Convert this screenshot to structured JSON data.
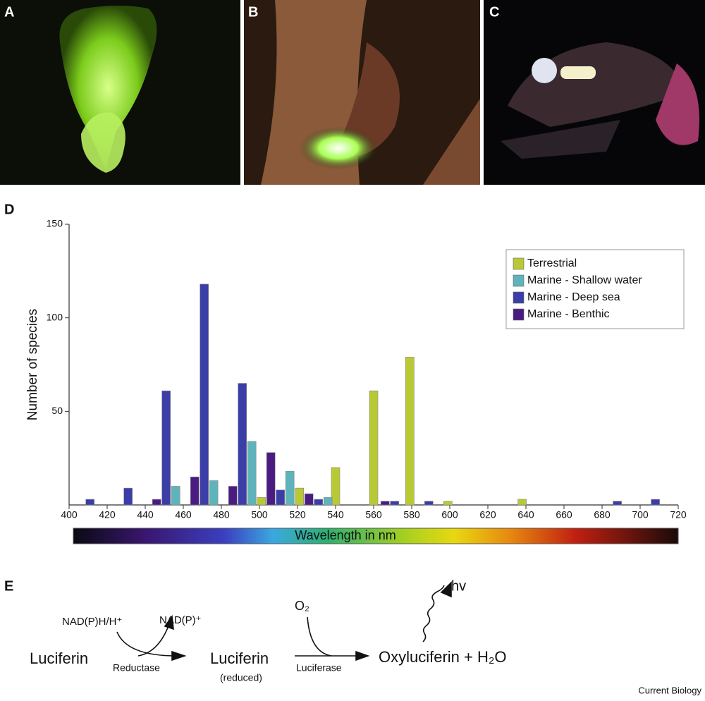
{
  "panel_labels": [
    "A",
    "B",
    "C",
    "D",
    "E"
  ],
  "chart_data": {
    "type": "bar",
    "x_label": "Wavelength in nm",
    "y_label": "Number of species",
    "xlim": [
      400,
      720
    ],
    "ylim": [
      0,
      150
    ],
    "xticks": [
      400,
      420,
      440,
      460,
      480,
      500,
      520,
      540,
      560,
      580,
      600,
      620,
      640,
      660,
      680,
      700,
      720
    ],
    "yticks": [
      50,
      100,
      150
    ],
    "legend": "top-right",
    "series": [
      {
        "name": "Terrestrial",
        "color": "#b9c936",
        "x": [
          501,
          521,
          540,
          560,
          579,
          599,
          638
        ],
        "values": [
          4,
          9,
          20,
          61,
          79,
          2,
          3
        ]
      },
      {
        "name": "Marine - Shallow water",
        "color": "#5fb3bb",
        "x": [
          456,
          476,
          496,
          516,
          536
        ],
        "values": [
          10,
          13,
          34,
          18,
          4
        ]
      },
      {
        "name": "Marine - Deep sea",
        "color": "#3b3ea6",
        "x": [
          411,
          431,
          451,
          471,
          491,
          511,
          531,
          571,
          589,
          688,
          708
        ],
        "values": [
          3,
          9,
          61,
          118,
          65,
          8,
          3,
          2,
          2,
          2,
          3
        ]
      },
      {
        "name": "Marine - Benthic",
        "color": "#4a1c82",
        "x": [
          446,
          466,
          486,
          506,
          526,
          566
        ],
        "values": [
          3,
          15,
          10,
          28,
          6,
          2
        ]
      }
    ]
  },
  "reaction": {
    "substrate": "Luciferin",
    "cofactor_in": "NAD(P)H/H⁺",
    "cofactor_out": "NAD(P)⁺",
    "enzyme_1": "Reductase",
    "intermediate": "Luciferin",
    "intermediate_note": "(reduced)",
    "oxygen": "O₂",
    "enzyme_2": "Luciferase",
    "product": "Oxyluciferin + H₂O",
    "light": "hv"
  },
  "footer": "Current Biology"
}
